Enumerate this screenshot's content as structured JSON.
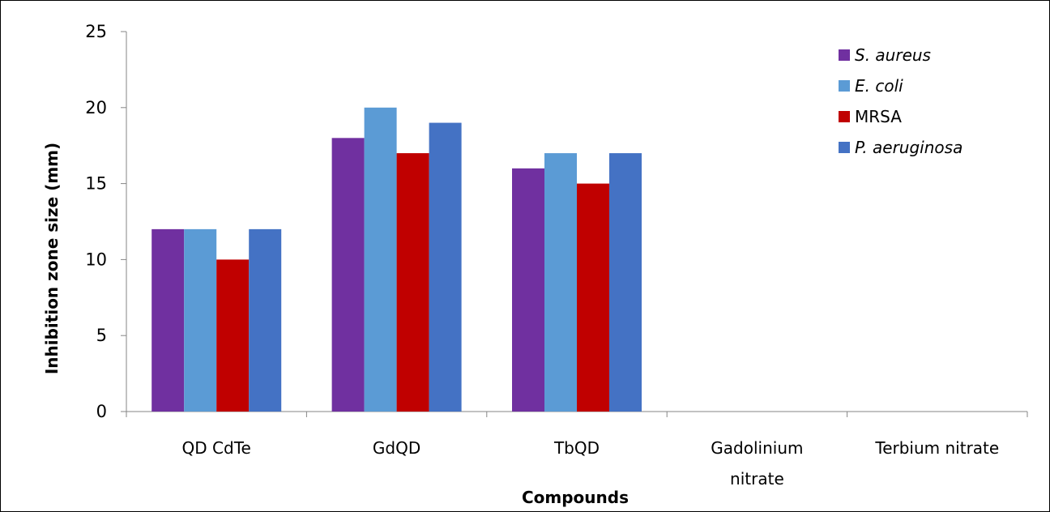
{
  "chart_data": {
    "type": "bar",
    "title": "",
    "xlabel": "Compounds",
    "ylabel": "Inhibition zone size (mm)",
    "ylim": [
      0,
      25
    ],
    "yticks": [
      "0",
      "5",
      "10",
      "15",
      "20",
      "25"
    ],
    "categories": [
      "QD CdTe",
      "GdQD",
      "TbQD",
      "Gadolinium nitrate",
      "Terbium nitrate"
    ],
    "category_lines": [
      [
        "QD CdTe"
      ],
      [
        "GdQD"
      ],
      [
        "TbQD"
      ],
      [
        "Gadolinium",
        "nitrate"
      ],
      [
        "Terbium nitrate"
      ]
    ],
    "grid": false,
    "legend_position": "top-right",
    "series": [
      {
        "name": "S. aureus",
        "italic": true,
        "color": "#7030A0",
        "values": [
          12,
          18,
          16,
          0,
          0
        ]
      },
      {
        "name": "E. coli",
        "italic": true,
        "color": "#5B9BD5",
        "values": [
          12,
          20,
          17,
          0,
          0
        ]
      },
      {
        "name": "MRSA",
        "italic": false,
        "color": "#C00000",
        "values": [
          10,
          17,
          15,
          0,
          0
        ]
      },
      {
        "name": "P. aeruginosa",
        "italic": true,
        "color": "#4472C4",
        "values": [
          12,
          19,
          17,
          0,
          0
        ]
      }
    ]
  }
}
